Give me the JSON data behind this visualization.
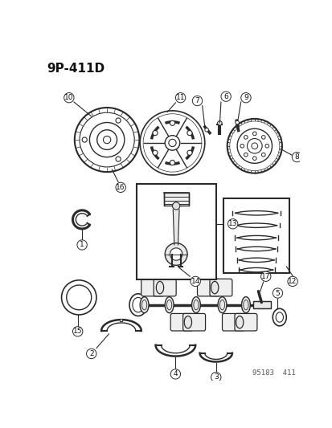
{
  "title": "9P-411D",
  "bg_color": "#ffffff",
  "lc": "#2a2a2a",
  "tc": "#111111",
  "footer": "95183  411",
  "fig_width": 4.14,
  "fig_height": 5.33,
  "dpi": 100
}
